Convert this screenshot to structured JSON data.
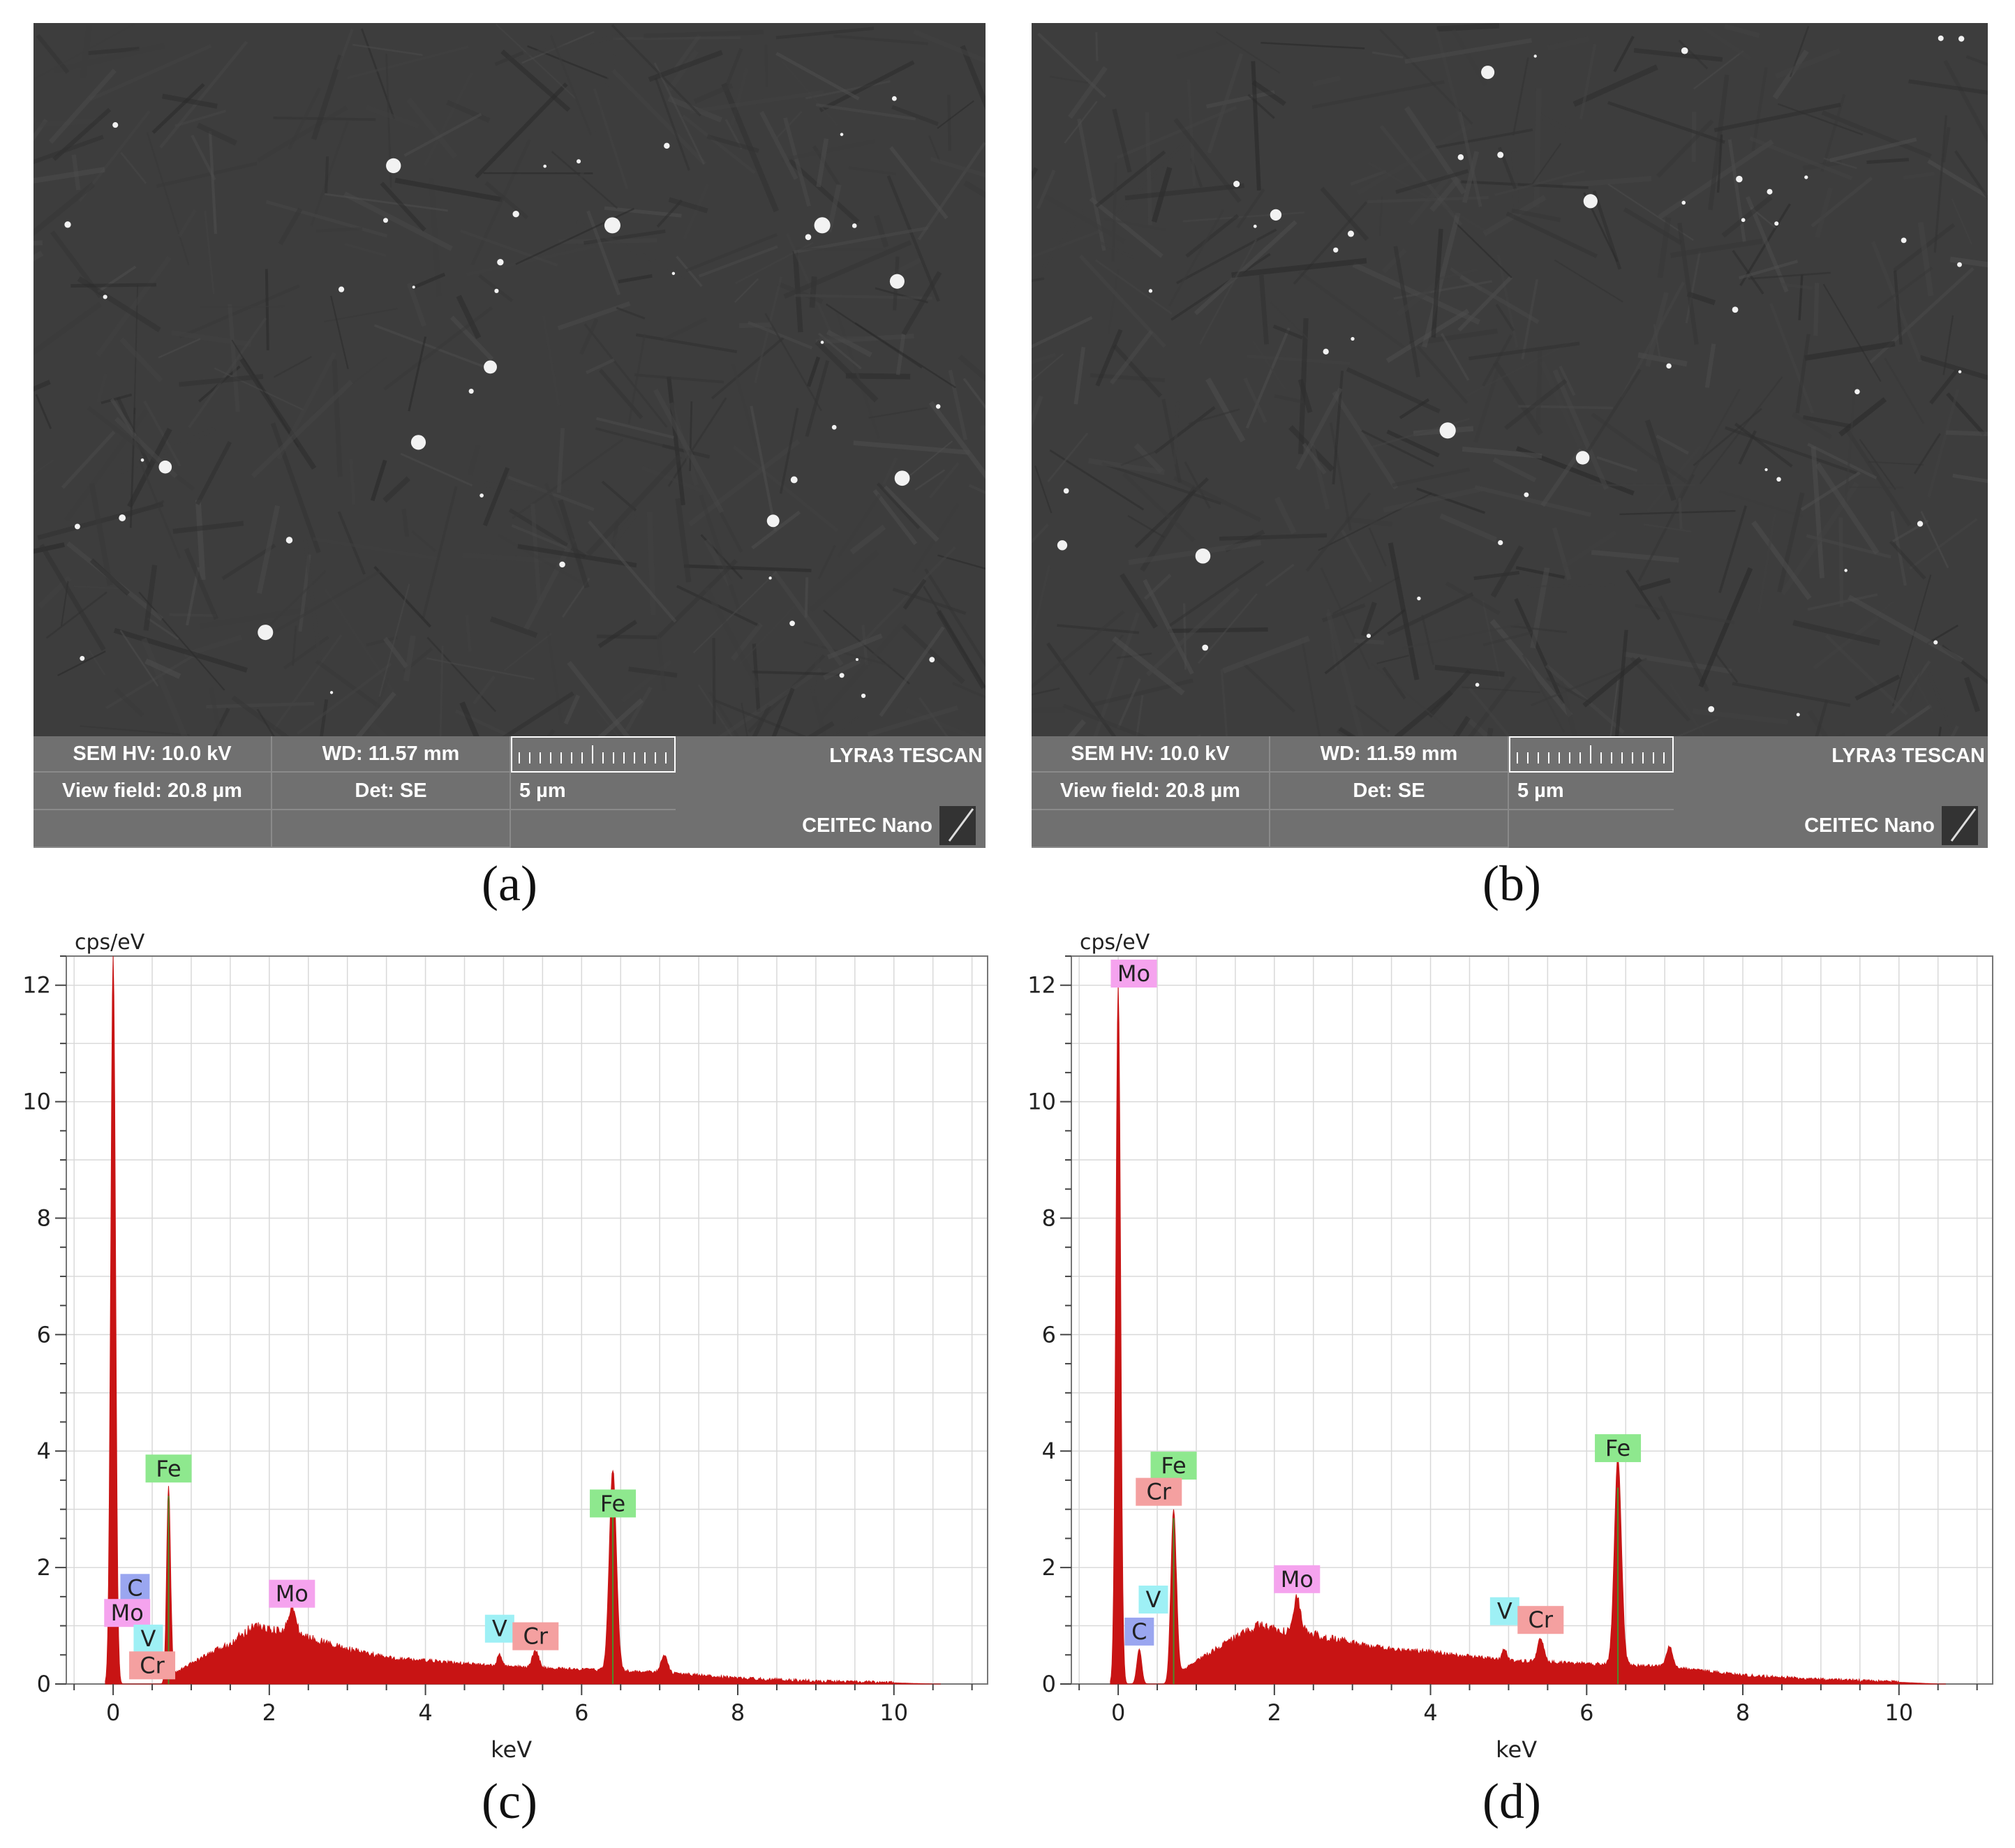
{
  "panels": {
    "a": {
      "label": "(a)",
      "sem": {
        "hv": "SEM HV: 10.0 kV",
        "wd": "WD: 11.57 mm",
        "brand": "LYRA3 TESCAN",
        "view_field": "View field: 20.8 µm",
        "det": "Det: SE",
        "scale": "5 µm",
        "lab": "CEITEC Nano"
      }
    },
    "b": {
      "label": "(b)",
      "sem": {
        "hv": "SEM HV: 10.0 kV",
        "wd": "WD: 11.59 mm",
        "brand": "LYRA3 TESCAN",
        "view_field": "View field: 20.8 µm",
        "det": "Det: SE",
        "scale": "5 µm",
        "lab": "CEITEC Nano"
      }
    },
    "c": {
      "label": "(c)"
    },
    "d": {
      "label": "(d)"
    }
  },
  "colors": {
    "spectrum": "#c81414",
    "label_fe": "#8ee88e",
    "label_cr": "#f4a0a0",
    "label_mo": "#f5a3ee",
    "label_v": "#9ef0f5",
    "label_c": "#9aa6f0",
    "grid": "#d9d9d9"
  },
  "chart_data": [
    {
      "type": "area",
      "panel": "c",
      "xlabel": "keV",
      "ylabel": "cps/eV",
      "xlim": [
        -0.6,
        11.2
      ],
      "ylim": [
        0,
        12.5
      ],
      "xticks": [
        0,
        2,
        4,
        6,
        8,
        10
      ],
      "yticks": [
        0,
        2,
        4,
        6,
        8,
        10,
        12
      ],
      "grid": true,
      "background": [
        [
          0.75,
          0.15
        ],
        [
          1.0,
          0.35
        ],
        [
          1.5,
          0.7
        ],
        [
          1.8,
          1.0
        ],
        [
          2.1,
          0.9
        ],
        [
          2.5,
          0.8
        ],
        [
          3.0,
          0.6
        ],
        [
          3.5,
          0.45
        ],
        [
          4.0,
          0.4
        ],
        [
          5.0,
          0.3
        ],
        [
          6.0,
          0.25
        ],
        [
          7.0,
          0.2
        ],
        [
          8.0,
          0.1
        ],
        [
          9.0,
          0.05
        ],
        [
          10.0,
          0.02
        ],
        [
          10.5,
          0.0
        ]
      ],
      "peaks": [
        {
          "x": 0.0,
          "height": 12.5,
          "width": 0.03
        },
        {
          "x": 0.71,
          "height": 3.4,
          "width": 0.025
        },
        {
          "x": 2.29,
          "height": 0.45,
          "width": 0.05
        },
        {
          "x": 4.95,
          "height": 0.2,
          "width": 0.03
        },
        {
          "x": 5.41,
          "height": 0.3,
          "width": 0.04
        },
        {
          "x": 6.4,
          "height": 3.45,
          "width": 0.045
        },
        {
          "x": 7.06,
          "height": 0.3,
          "width": 0.04
        }
      ],
      "element_labels": [
        {
          "text": "Fe",
          "x": 0.71,
          "y": 3.7,
          "color": "label_fe"
        },
        {
          "text": "C",
          "x": 0.28,
          "y": 1.65,
          "color": "label_c"
        },
        {
          "text": "Mo",
          "x": 0.18,
          "y": 1.22,
          "color": "label_mo"
        },
        {
          "text": "V",
          "x": 0.45,
          "y": 0.78,
          "color": "label_v"
        },
        {
          "text": "Cr",
          "x": 0.5,
          "y": 0.32,
          "color": "label_cr"
        },
        {
          "text": "Mo",
          "x": 2.29,
          "y": 1.55,
          "color": "label_mo"
        },
        {
          "text": "V",
          "x": 4.95,
          "y": 0.95,
          "color": "label_v"
        },
        {
          "text": "Cr",
          "x": 5.41,
          "y": 0.82,
          "color": "label_cr"
        },
        {
          "text": "Fe",
          "x": 6.4,
          "y": 3.1,
          "color": "label_fe"
        }
      ]
    },
    {
      "type": "area",
      "panel": "d",
      "xlabel": "keV",
      "ylabel": "cps/eV",
      "xlim": [
        -0.6,
        11.2
      ],
      "ylim": [
        0,
        12.5
      ],
      "xticks": [
        0,
        2,
        4,
        6,
        8,
        10
      ],
      "yticks": [
        0,
        2,
        4,
        6,
        8,
        10,
        12
      ],
      "grid": true,
      "background": [
        [
          0.75,
          0.15
        ],
        [
          1.0,
          0.4
        ],
        [
          1.5,
          0.8
        ],
        [
          1.8,
          1.0
        ],
        [
          2.1,
          0.9
        ],
        [
          2.5,
          0.85
        ],
        [
          3.0,
          0.7
        ],
        [
          3.5,
          0.6
        ],
        [
          4.0,
          0.55
        ],
        [
          5.0,
          0.4
        ],
        [
          6.0,
          0.35
        ],
        [
          7.0,
          0.3
        ],
        [
          8.0,
          0.15
        ],
        [
          9.0,
          0.08
        ],
        [
          10.0,
          0.03
        ],
        [
          10.5,
          0.0
        ]
      ],
      "peaks": [
        {
          "x": 0.0,
          "height": 12.0,
          "width": 0.03
        },
        {
          "x": 0.27,
          "height": 0.6,
          "width": 0.03
        },
        {
          "x": 0.71,
          "height": 3.0,
          "width": 0.035
        },
        {
          "x": 2.29,
          "height": 0.6,
          "width": 0.05
        },
        {
          "x": 4.95,
          "height": 0.2,
          "width": 0.03
        },
        {
          "x": 5.41,
          "height": 0.4,
          "width": 0.04
        },
        {
          "x": 6.4,
          "height": 3.55,
          "width": 0.045
        },
        {
          "x": 7.06,
          "height": 0.35,
          "width": 0.04
        }
      ],
      "element_labels": [
        {
          "text": "Mo",
          "x": 0.2,
          "y": 12.2,
          "color": "label_mo"
        },
        {
          "text": "Fe",
          "x": 0.71,
          "y": 3.75,
          "color": "label_fe"
        },
        {
          "text": "Cr",
          "x": 0.52,
          "y": 3.3,
          "color": "label_cr"
        },
        {
          "text": "V",
          "x": 0.45,
          "y": 1.45,
          "color": "label_v"
        },
        {
          "text": "C",
          "x": 0.27,
          "y": 0.9,
          "color": "label_c"
        },
        {
          "text": "Mo",
          "x": 2.29,
          "y": 1.8,
          "color": "label_mo"
        },
        {
          "text": "V",
          "x": 4.95,
          "y": 1.25,
          "color": "label_v"
        },
        {
          "text": "Cr",
          "x": 5.41,
          "y": 1.1,
          "color": "label_cr"
        },
        {
          "text": "Fe",
          "x": 6.4,
          "y": 4.05,
          "color": "label_fe"
        }
      ]
    }
  ]
}
